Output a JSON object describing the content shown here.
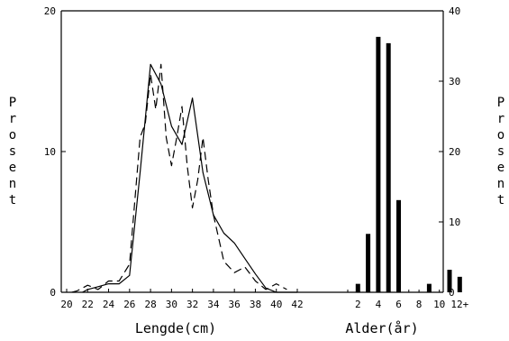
{
  "chart_data": [
    {
      "type": "line",
      "xlabel": "Lengde(cm)",
      "ylabel": "Prosent",
      "xlim": [
        20,
        42
      ],
      "ylim": [
        0,
        20
      ],
      "xticks": [
        "20",
        "22",
        "24",
        "26",
        "28",
        "30",
        "32",
        "34",
        "36",
        "38",
        "40",
        "42"
      ],
      "yticks": [
        "0",
        "10",
        "20"
      ],
      "series": [
        {
          "style": "solid",
          "x": [
            21.5,
            22,
            23,
            24,
            25,
            26,
            27,
            28,
            29,
            30,
            31,
            32,
            33,
            34,
            35,
            36,
            37,
            38,
            39,
            40,
            41,
            42
          ],
          "y": [
            0.0,
            0.2,
            0.4,
            0.6,
            0.6,
            1.2,
            8.5,
            16.2,
            14.8,
            11.8,
            10.5,
            13.8,
            8.5,
            5.5,
            4.2,
            3.5,
            2.4,
            1.3,
            0.3,
            0.0,
            0.0,
            0.0
          ]
        },
        {
          "style": "dashed",
          "x": [
            20.5,
            21,
            22,
            23,
            24,
            25,
            26,
            27,
            27.5,
            28,
            28.5,
            29,
            29.5,
            30,
            30.5,
            31,
            31.5,
            32,
            32.5,
            33,
            33.5,
            34,
            35,
            36,
            37,
            38,
            39,
            40,
            41
          ],
          "y": [
            0.0,
            0.1,
            0.5,
            0.2,
            0.8,
            0.8,
            2.0,
            11.0,
            12.0,
            15.5,
            13.0,
            16.2,
            11.0,
            9.0,
            11.0,
            13.2,
            9.0,
            6.0,
            8.0,
            11.0,
            8.0,
            5.5,
            2.2,
            1.4,
            1.8,
            0.8,
            0.2,
            0.6,
            0.2
          ]
        }
      ]
    },
    {
      "type": "bar",
      "xlabel": "Alder(år)",
      "ylabel": "Prosent",
      "ylim": [
        0,
        40
      ],
      "yticks": [
        "0",
        "10",
        "20",
        "30",
        "40"
      ],
      "tick_labels": [
        "2",
        "4",
        "6",
        "8",
        "10",
        "12+"
      ],
      "ages": [
        1,
        2,
        3,
        4,
        5,
        6,
        7,
        8,
        9,
        10,
        11,
        12
      ],
      "values": [
        0,
        1.2,
        8.3,
        36.3,
        35.4,
        13.1,
        0,
        0,
        1.2,
        0,
        3.2,
        2.2
      ]
    }
  ]
}
